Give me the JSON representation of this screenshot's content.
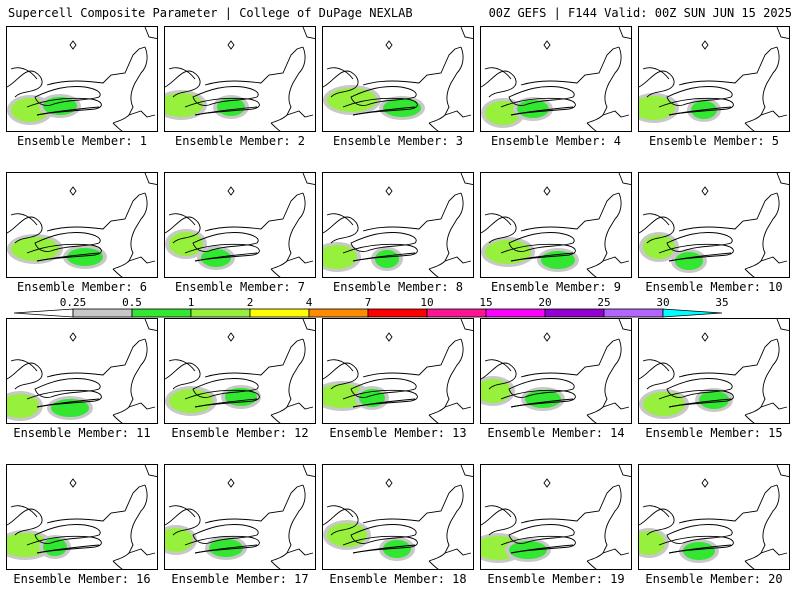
{
  "header": {
    "title_left": "Supercell Composite Parameter | College of DuPage NEXLAB",
    "title_right": "00Z GEFS | F144 Valid: 00Z SUN JUN 15 2025"
  },
  "legend": {
    "levels": [
      "0.25",
      "0.5",
      "1",
      "2",
      "4",
      "7",
      "10",
      "15",
      "20",
      "25",
      "30",
      "35"
    ],
    "colors": [
      "#ffffff",
      "#c8c8c8",
      "#32e632",
      "#96f03c",
      "#ffff00",
      "#ff8c00",
      "#ff0000",
      "#ff1493",
      "#ff00ff",
      "#9400d3",
      "#b266ff",
      "#00ffff"
    ]
  },
  "panels": [
    {
      "label": "Ensemble Member: 1"
    },
    {
      "label": "Ensemble Member: 2"
    },
    {
      "label": "Ensemble Member: 3"
    },
    {
      "label": "Ensemble Member: 4"
    },
    {
      "label": "Ensemble Member: 5"
    },
    {
      "label": "Ensemble Member: 6"
    },
    {
      "label": "Ensemble Member: 7"
    },
    {
      "label": "Ensemble Member: 8"
    },
    {
      "label": "Ensemble Member: 9"
    },
    {
      "label": "Ensemble Member: 10"
    },
    {
      "label": "Ensemble Member: 11"
    },
    {
      "label": "Ensemble Member: 12"
    },
    {
      "label": "Ensemble Member: 13"
    },
    {
      "label": "Ensemble Member: 14"
    },
    {
      "label": "Ensemble Member: 15"
    },
    {
      "label": "Ensemble Member: 16"
    },
    {
      "label": "Ensemble Member: 17"
    },
    {
      "label": "Ensemble Member: 18"
    },
    {
      "label": "Ensemble Member: 19"
    },
    {
      "label": "Ensemble Member: 20"
    }
  ]
}
